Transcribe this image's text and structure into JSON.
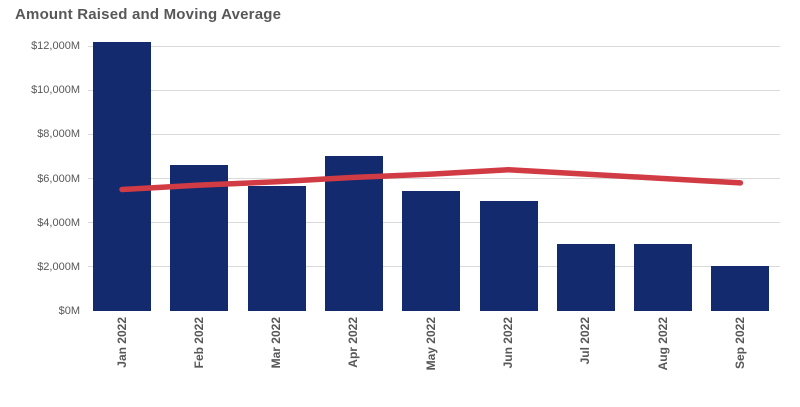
{
  "page": {
    "title": "Amount Raised and Moving Average"
  },
  "colors": {
    "background": "#ffffff",
    "bar": "#132a6e",
    "line": "#d13b44",
    "title_text": "#58585a",
    "axis_text": "#58585a",
    "gridline": "#d9d9d9"
  },
  "chart_data": {
    "type": "bar",
    "title": "Amount Raised and Moving Average",
    "categories": [
      "Jan 2022",
      "Feb 2022",
      "Mar 2022",
      "Apr 2022",
      "May 2022",
      "Jun 2022",
      "Jul 2022",
      "Aug 2022",
      "Sep 2022"
    ],
    "series": [
      {
        "name": "Amount Raised",
        "type": "bar",
        "color": "#132a6e",
        "values": [
          12200,
          6600,
          5650,
          7000,
          5450,
          5000,
          3050,
          3050,
          2050
        ]
      },
      {
        "name": "Moving Average",
        "type": "line",
        "color": "#d13b44",
        "values": [
          5500,
          5700,
          5850,
          6050,
          6200,
          6400,
          6200,
          6000,
          5800
        ]
      }
    ],
    "unit": "$M",
    "xlabel": "",
    "ylabel": "",
    "ylim": [
      0,
      12000
    ],
    "y_ticks": [
      {
        "value": 12000,
        "label": "$12,000M"
      },
      {
        "value": 10000,
        "label": "$10,000M"
      },
      {
        "value": 8000,
        "label": "$8,000M"
      },
      {
        "value": 6000,
        "label": "$6,000M"
      },
      {
        "value": 4000,
        "label": "$4,000M"
      },
      {
        "value": 2000,
        "label": "$2,000M"
      },
      {
        "value": 0,
        "label": "$0M"
      }
    ],
    "grid": "horizontal",
    "legend_position": "none",
    "x_tick_rotation": 90
  }
}
